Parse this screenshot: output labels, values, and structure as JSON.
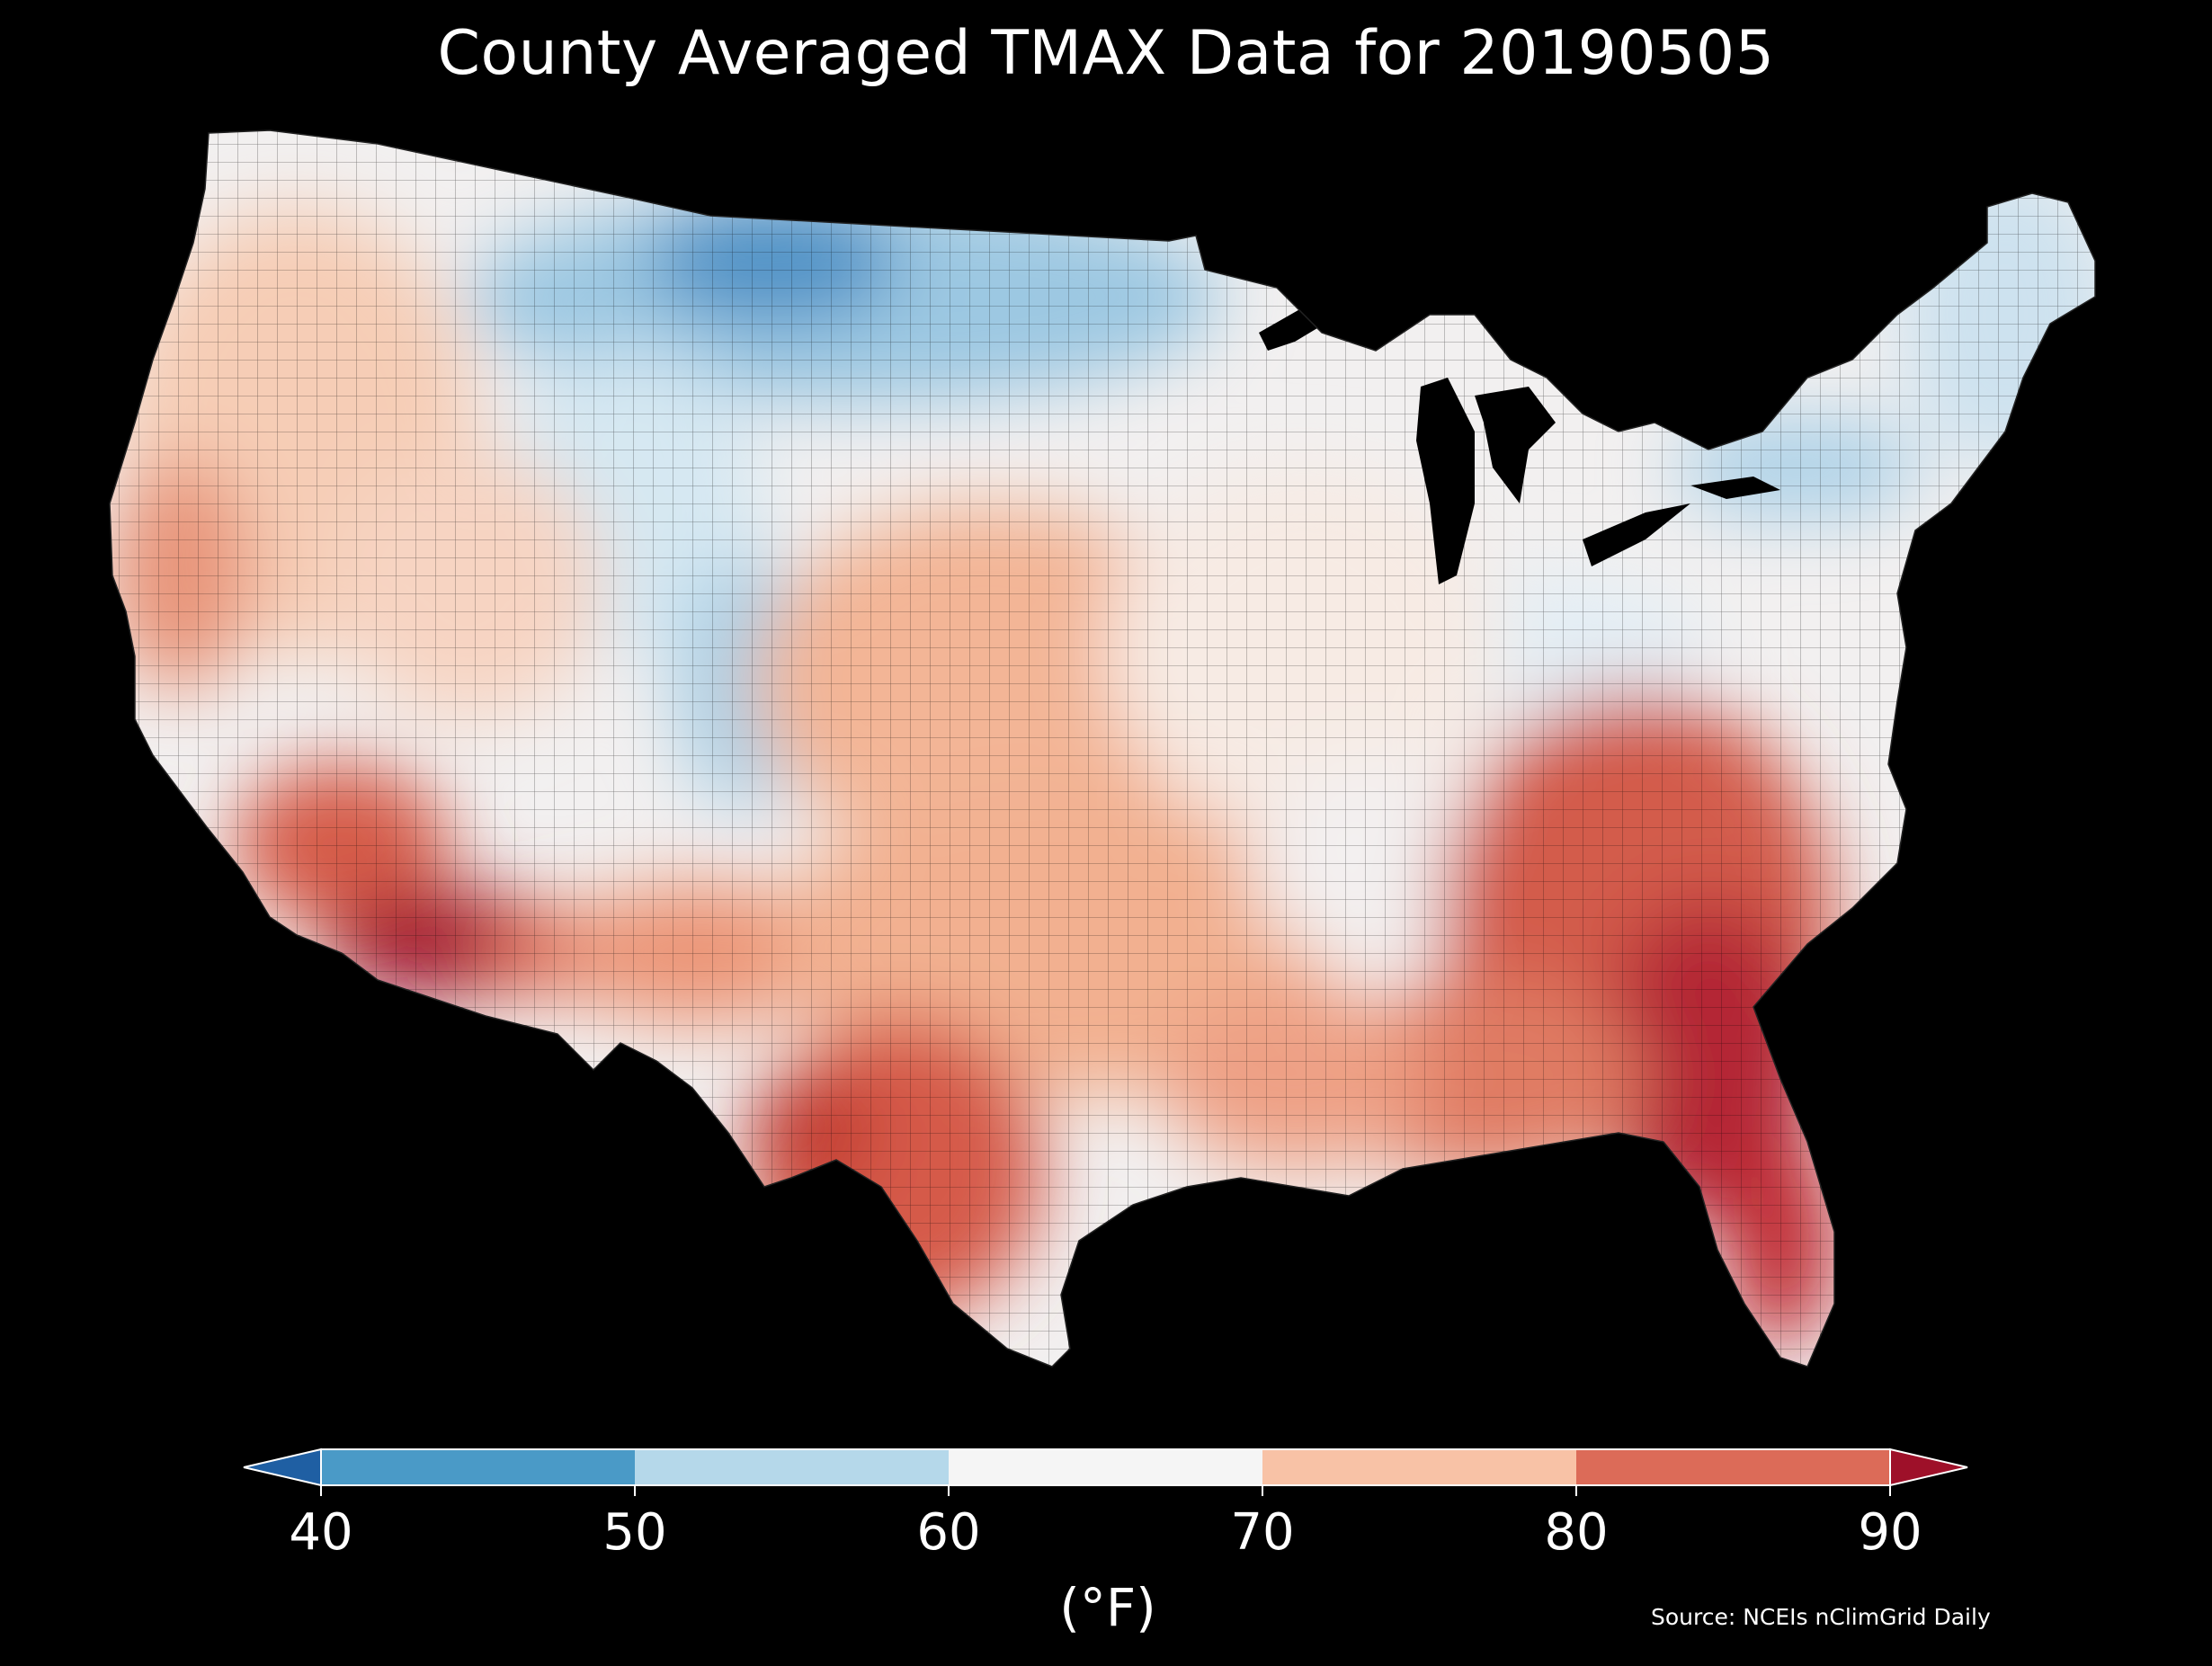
{
  "title": "County Averaged TMAX Data for 20190505",
  "source": "Source: NCEIs nClimGrid Daily",
  "colorbar": {
    "unit": "(°F)",
    "ticks": [
      "40",
      "50",
      "60",
      "70",
      "80",
      "90"
    ],
    "bins": [
      {
        "range": "< 40",
        "color": "#1f5fa3"
      },
      {
        "range": "40-50",
        "color": "#4a9ac7"
      },
      {
        "range": "50-60",
        "color": "#b5d8ea"
      },
      {
        "range": "60-70",
        "color": "#f5f5f5"
      },
      {
        "range": "70-80",
        "color": "#f8c2a6"
      },
      {
        "range": "80-90",
        "color": "#dc6b58"
      },
      {
        "range": "> 90",
        "color": "#9e1029"
      }
    ]
  },
  "map": {
    "background": "#000000",
    "region": "Contiguous United States counties"
  }
}
